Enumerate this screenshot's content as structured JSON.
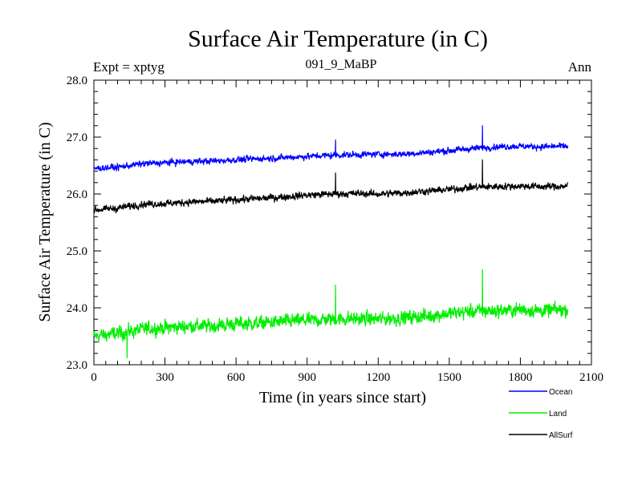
{
  "chart_data": {
    "type": "line",
    "title": "Surface Air Temperature (in C)",
    "subtitle": "091_9_MaBP",
    "experiment_label": "Expt = xptyg",
    "period_label": "Ann",
    "xlabel": "Time (in years since start)",
    "ylabel": "Surface Air Temperature (in C)",
    "xlim": [
      0,
      2100
    ],
    "ylim": [
      23.0,
      28.0
    ],
    "x_ticks": [
      0,
      300,
      600,
      900,
      1200,
      1500,
      1800,
      2100
    ],
    "x_tick_labels": [
      "0",
      "300",
      "600",
      "900",
      "1200",
      "1500",
      "1800",
      "2100"
    ],
    "y_ticks": [
      23.0,
      24.0,
      25.0,
      26.0,
      27.0,
      28.0
    ],
    "y_tick_labels": [
      "23.0",
      "24.0",
      "25.0",
      "26.0",
      "27.0",
      "28.0"
    ],
    "grid": false,
    "legend_position": "bottom-right, below plot",
    "series": [
      {
        "name": "Ocean",
        "color": "#0000ff",
        "x": [
          0,
          100,
          200,
          300,
          400,
          500,
          600,
          700,
          800,
          900,
          1000,
          1100,
          1200,
          1300,
          1400,
          1500,
          1600,
          1700,
          1800,
          1900,
          2000
        ],
        "y": [
          26.45,
          26.47,
          26.53,
          26.55,
          26.57,
          26.58,
          26.6,
          26.62,
          26.64,
          26.66,
          26.68,
          26.69,
          26.7,
          26.7,
          26.73,
          26.76,
          26.8,
          26.83,
          26.84,
          26.83,
          26.84
        ],
        "noise_amplitude": 0.09,
        "spikes": [
          {
            "x": 1640,
            "y": 27.2
          },
          {
            "x": 1020,
            "y": 26.95
          }
        ]
      },
      {
        "name": "Land",
        "color": "#00ee00",
        "x": [
          0,
          100,
          200,
          300,
          400,
          500,
          600,
          700,
          800,
          900,
          1000,
          1100,
          1200,
          1300,
          1400,
          1500,
          1600,
          1700,
          1800,
          1900,
          2000
        ],
        "y": [
          23.5,
          23.55,
          23.62,
          23.65,
          23.68,
          23.68,
          23.72,
          23.73,
          23.76,
          23.78,
          23.8,
          23.81,
          23.8,
          23.82,
          23.85,
          23.9,
          23.94,
          23.95,
          23.97,
          23.95,
          23.97
        ],
        "noise_amplitude": 0.2,
        "spikes": [
          {
            "x": 1640,
            "y": 24.67
          },
          {
            "x": 1020,
            "y": 24.4
          },
          {
            "x": 140,
            "y": 23.12
          }
        ]
      },
      {
        "name": "AllSurf",
        "color": "#000000",
        "x": [
          0,
          100,
          200,
          300,
          400,
          500,
          600,
          700,
          800,
          900,
          1000,
          1100,
          1200,
          1300,
          1400,
          1500,
          1600,
          1700,
          1800,
          1900,
          2000
        ],
        "y": [
          25.72,
          25.75,
          25.82,
          25.83,
          25.86,
          25.87,
          25.9,
          25.92,
          25.95,
          25.98,
          26.0,
          26.01,
          26.0,
          26.02,
          26.05,
          26.08,
          26.12,
          26.13,
          26.14,
          26.13,
          26.14
        ],
        "noise_amplitude": 0.1,
        "spikes": [
          {
            "x": 1640,
            "y": 26.6
          },
          {
            "x": 1020,
            "y": 26.37
          }
        ]
      }
    ]
  }
}
